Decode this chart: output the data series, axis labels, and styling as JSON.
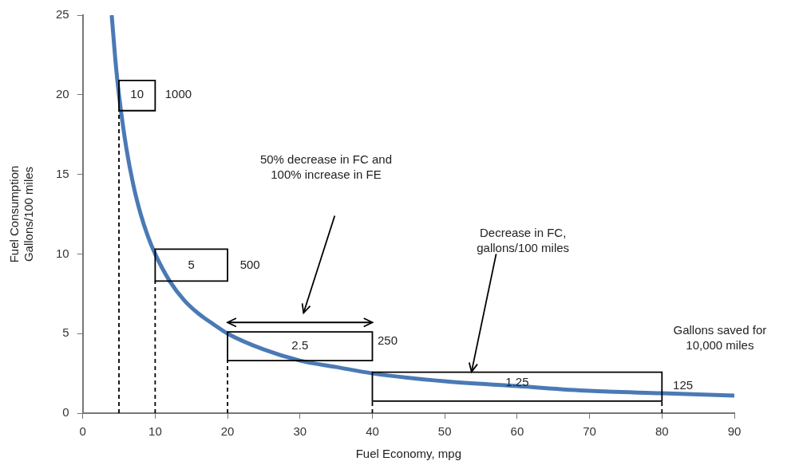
{
  "chart_data": {
    "type": "line",
    "xlabel": "Fuel Economy, mpg",
    "ylabel": "Fuel Consumption\nGallons/100 miles",
    "xlim": [
      0,
      90
    ],
    "xticks": [
      0,
      10,
      20,
      30,
      40,
      50,
      60,
      70,
      80,
      90
    ],
    "ylim": [
      0,
      25
    ],
    "yticks": [
      0,
      5,
      10,
      15,
      20,
      25
    ],
    "grid": false,
    "legend": false,
    "marker": "none",
    "line_style": "solid",
    "series": [
      {
        "color": "#4a7ab5",
        "x": [
          4,
          4.5,
          5,
          6,
          7,
          8,
          9,
          10,
          12,
          14,
          16,
          18,
          20,
          25,
          30,
          35,
          40,
          50,
          60,
          70,
          80,
          90
        ],
        "values": [
          25,
          22.2,
          20,
          16.7,
          14.3,
          12.5,
          11.1,
          10,
          8.3,
          7.1,
          6.25,
          5.6,
          5,
          4,
          3.3,
          2.9,
          2.5,
          2,
          1.7,
          1.4,
          1.25,
          1.1
        ]
      }
    ],
    "annotations": [
      "10",
      "1000",
      "5",
      "500",
      "2.5",
      "250",
      "1.25",
      "125",
      "50% decrease in FC and\n100% increase in FE",
      "Decrease in FC,\ngallons/100 miles",
      "Gallons saved for\n10,000 miles"
    ]
  }
}
